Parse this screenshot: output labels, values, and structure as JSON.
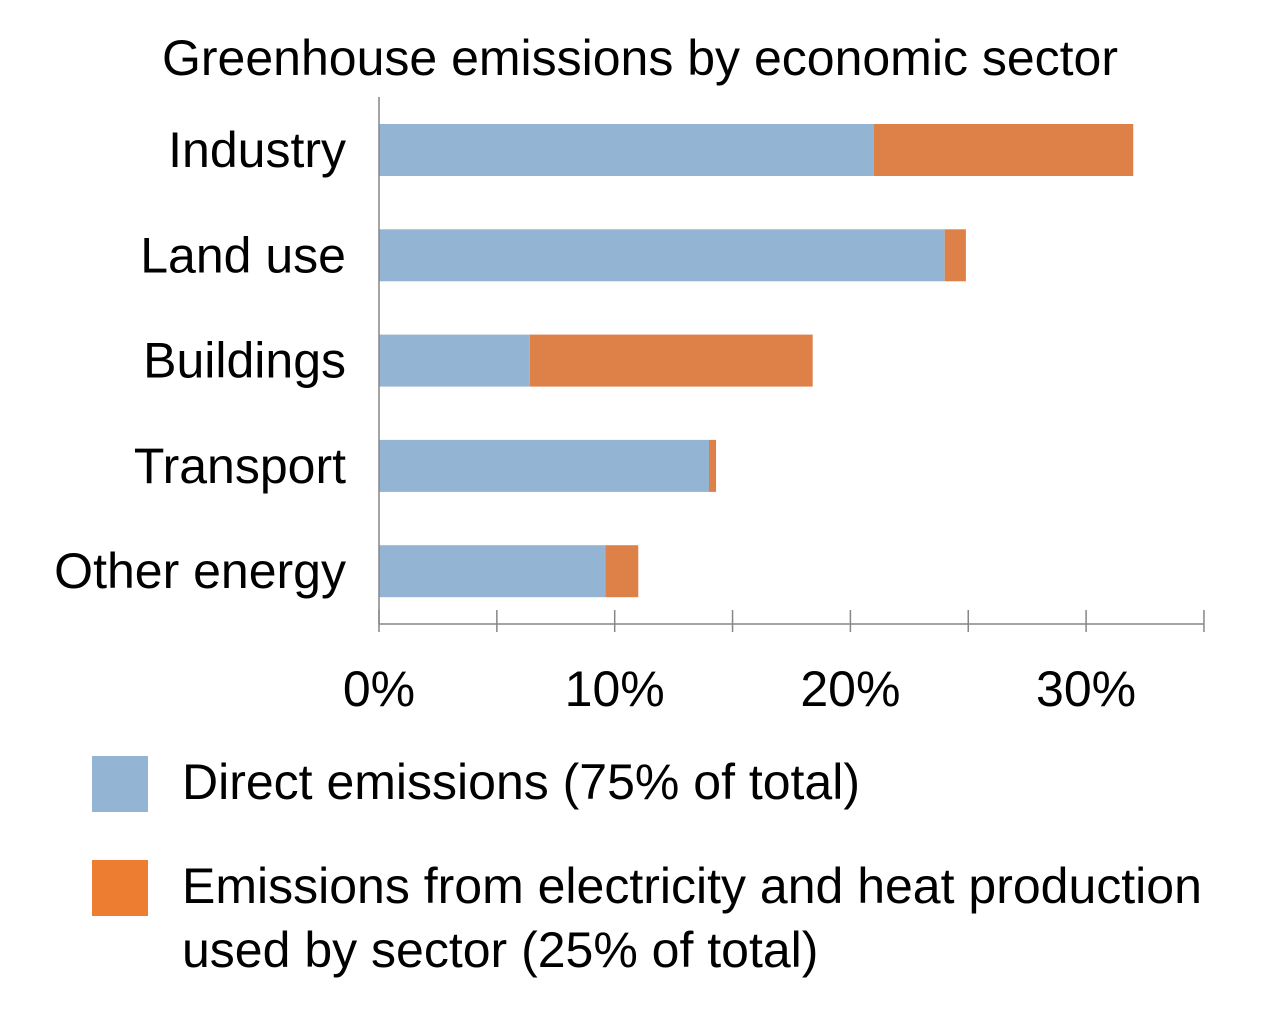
{
  "chart_data": {
    "type": "bar",
    "orientation": "horizontal",
    "stacked": true,
    "title": "Greenhouse emissions by economic sector",
    "xlabel": "",
    "ylabel": "",
    "categories": [
      "Industry",
      "Land use",
      "Buildings",
      "Transport",
      "Other energy"
    ],
    "series": [
      {
        "name": "Direct emissions (75% of total)",
        "color": "#93b4d2",
        "values": [
          21,
          24,
          6.4,
          14,
          9.6
        ]
      },
      {
        "name": "Emissions from electricity and heat production used by sector (25% of total)",
        "color": "#de8149",
        "values": [
          11,
          0.9,
          12,
          0.3,
          1.4
        ]
      }
    ],
    "xlim": [
      0,
      35
    ],
    "xticks": [
      0,
      10,
      20,
      30
    ],
    "xtick_labels": [
      "0%",
      "10%",
      "20%",
      "30%"
    ],
    "minor_xticks": [
      5,
      15,
      25,
      35
    ],
    "grid": false,
    "legend_position": "bottom",
    "legend_swatch_colors": [
      "#93b4d2",
      "#ed7d31"
    ]
  }
}
